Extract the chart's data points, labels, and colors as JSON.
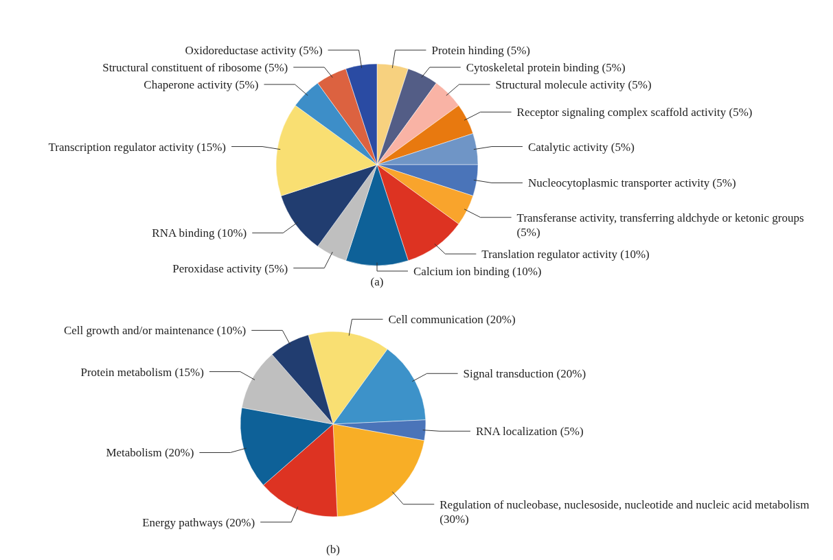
{
  "chart_data": [
    {
      "type": "pie",
      "title": "(a)",
      "categories": [
        "Protein hinding (5%)",
        "Cytoskeletal protein binding (5%)",
        "Structural molecule activity (5%)",
        "Receptor signaling complex scaffold activity (5%)",
        "Catalytic activity (5%)",
        "Nucleocytoplasmic transporter activity (5%)",
        "Transferanse activity, transferring aldchyde or ketonic groups (5%)",
        "Translation regulator activity (10%)",
        "Calcium ion binding (10%)",
        "Peroxidase activity (5%)",
        "RNA binding (10%)",
        "Transcription regulator activity (15%)",
        "Chaperone activity (5%)",
        "Structural constituent of ribosome (5%)",
        "Oxidoreductase activity (5%)"
      ],
      "values": [
        5,
        5,
        5,
        5,
        5,
        5,
        5,
        10,
        10,
        5,
        10,
        15,
        5,
        5,
        5
      ],
      "colors": [
        "#f7d17f",
        "#535d86",
        "#f9b3a5",
        "#e8790f",
        "#6f95c6",
        "#4a74b9",
        "#f9a42c",
        "#dd3322",
        "#0e6198",
        "#bfbfbf",
        "#213d70",
        "#f9df72",
        "#3d8ec8",
        "#dc6240",
        "#2a4ba3"
      ]
    },
    {
      "type": "pie",
      "title": "(b)",
      "categories": [
        "Cell communication (20%)",
        "Signal transduction (20%)",
        "RNA localization (5%)",
        "Regulation of nucleobase, nuclesoside, nucleotide and nucleic acid metabolism (30%)",
        "Energy pathways (20%)",
        "Metabolism (20%)",
        "Protein metabolism (15%)",
        "Cell growth and/or maintenance (10%)"
      ],
      "values": [
        20,
        20,
        5,
        30,
        20,
        20,
        15,
        10
      ],
      "colors": [
        "#f9df72",
        "#3d92c9",
        "#4a74b9",
        "#f8ae26",
        "#dd3322",
        "#0e6198",
        "#bfbfbf",
        "#213d70"
      ]
    }
  ]
}
